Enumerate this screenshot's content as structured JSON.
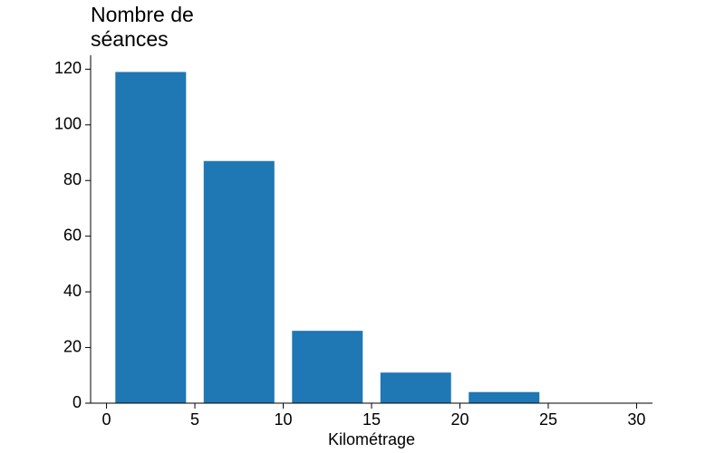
{
  "chart_data": {
    "type": "histogram",
    "ylabel": "Nombre de séances",
    "xlabel": "Kilométrage",
    "bins": [
      0,
      5,
      10,
      15,
      20,
      25,
      30
    ],
    "values": [
      119,
      87,
      26,
      11,
      4,
      0
    ],
    "color": "#1f77b4",
    "xlim": [
      -0.9,
      30.9
    ],
    "xticks": [
      0,
      5,
      10,
      15,
      20,
      25,
      30
    ],
    "ylim": [
      0,
      125
    ],
    "yticks": [
      0,
      20,
      40,
      60,
      80,
      100,
      120
    ]
  }
}
